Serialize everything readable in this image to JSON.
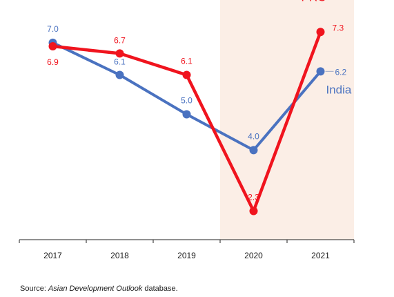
{
  "chart_data": {
    "type": "line",
    "categories": [
      "2017",
      "2018",
      "2019",
      "2020",
      "2021"
    ],
    "ylim": [
      1.5,
      8.0
    ],
    "highlight_category": "2020",
    "highlight_color": "#fbeee6",
    "grid": false,
    "legend": "inline-labels",
    "series": [
      {
        "name": "India",
        "color": "#4a72c0",
        "values": [
          7.0,
          6.1,
          5.0,
          4.0,
          6.2
        ],
        "labels": [
          "7.0",
          "6.1",
          "5.0",
          "4.0",
          "6.2"
        ]
      },
      {
        "name": "PRC",
        "color": "#f0141e",
        "values": [
          6.9,
          6.7,
          6.1,
          2.3,
          7.3
        ],
        "labels": [
          "6.9",
          "6.7",
          "6.1",
          "2.3",
          "7.3"
        ]
      }
    ]
  },
  "source": {
    "prefix": "Source: ",
    "title": "Asian Development Outlook",
    "suffix": " database."
  }
}
